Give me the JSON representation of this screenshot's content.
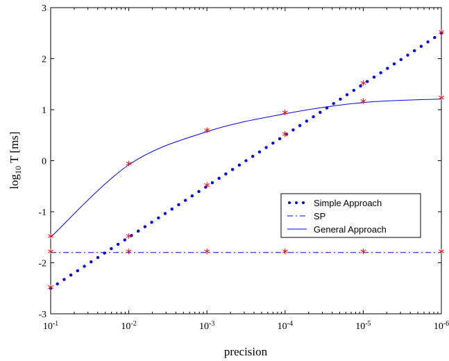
{
  "chart_data": {
    "type": "line",
    "title": "",
    "xlabel": "precision",
    "ylabel": "log10 T [ms]",
    "ylabel_parts": {
      "base": "log",
      "sub": "10",
      "rest": " T [ms]"
    },
    "x_scale": "log-reversed",
    "x": [
      0.1,
      0.01,
      0.001,
      0.0001,
      1e-05,
      1e-06
    ],
    "xtick_labels": [
      {
        "base": "10",
        "exp": "-1"
      },
      {
        "base": "10",
        "exp": "-2"
      },
      {
        "base": "10",
        "exp": "-3"
      },
      {
        "base": "10",
        "exp": "-4"
      },
      {
        "base": "10",
        "exp": "-5"
      },
      {
        "base": "10",
        "exp": "-6"
      }
    ],
    "ylim": [
      -3,
      3
    ],
    "yticks": [
      "-3",
      "-2",
      "-1",
      "0",
      "1",
      "2",
      "3"
    ],
    "grid": false,
    "legend_position": "lower-right",
    "series": [
      {
        "name": "Simple Approach",
        "style": "dotted",
        "color": "#0000ff",
        "values": [
          -2.5,
          -1.5,
          -0.5,
          0.5,
          1.5,
          2.5
        ],
        "marker_values": [
          -2.5,
          -1.5,
          -0.5,
          0.5,
          1.5,
          2.5
        ]
      },
      {
        "name": "SP",
        "style": "dashdot",
        "color": "#0000ff",
        "values": [
          -1.8,
          -1.8,
          -1.8,
          -1.8,
          -1.8,
          -1.8
        ],
        "marker_values": [
          -1.8,
          -1.8,
          -1.8,
          -1.8,
          -1.8,
          -1.8
        ]
      },
      {
        "name": "General Approach",
        "style": "solid",
        "color": "#0000ff",
        "values": [
          -1.5,
          -0.08,
          0.57,
          0.92,
          1.14,
          1.21
        ],
        "marker_values": [
          -1.5,
          -0.08,
          0.57,
          0.92,
          1.14,
          1.21
        ]
      }
    ],
    "marker_color": "#ff0000"
  }
}
